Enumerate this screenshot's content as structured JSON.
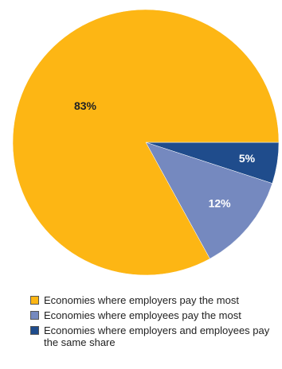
{
  "chart_data": {
    "type": "pie",
    "slices": [
      {
        "label": "Economies where employers pay the most",
        "value": 83,
        "display": "83%",
        "color": "#FDB614",
        "label_color": "#222222"
      },
      {
        "label": "Economies where employees pay the most",
        "value": 12,
        "display": "12%",
        "color": "#7589BF",
        "label_color": "#ffffff"
      },
      {
        "label": "Economies where employers and employees pay the same share",
        "value": 5,
        "display": "5%",
        "color": "#1F4C8C",
        "label_color": "#ffffff"
      }
    ],
    "legend_position": "bottom",
    "start_angle_deg": 0,
    "direction": "counterclockwise-from-east"
  }
}
